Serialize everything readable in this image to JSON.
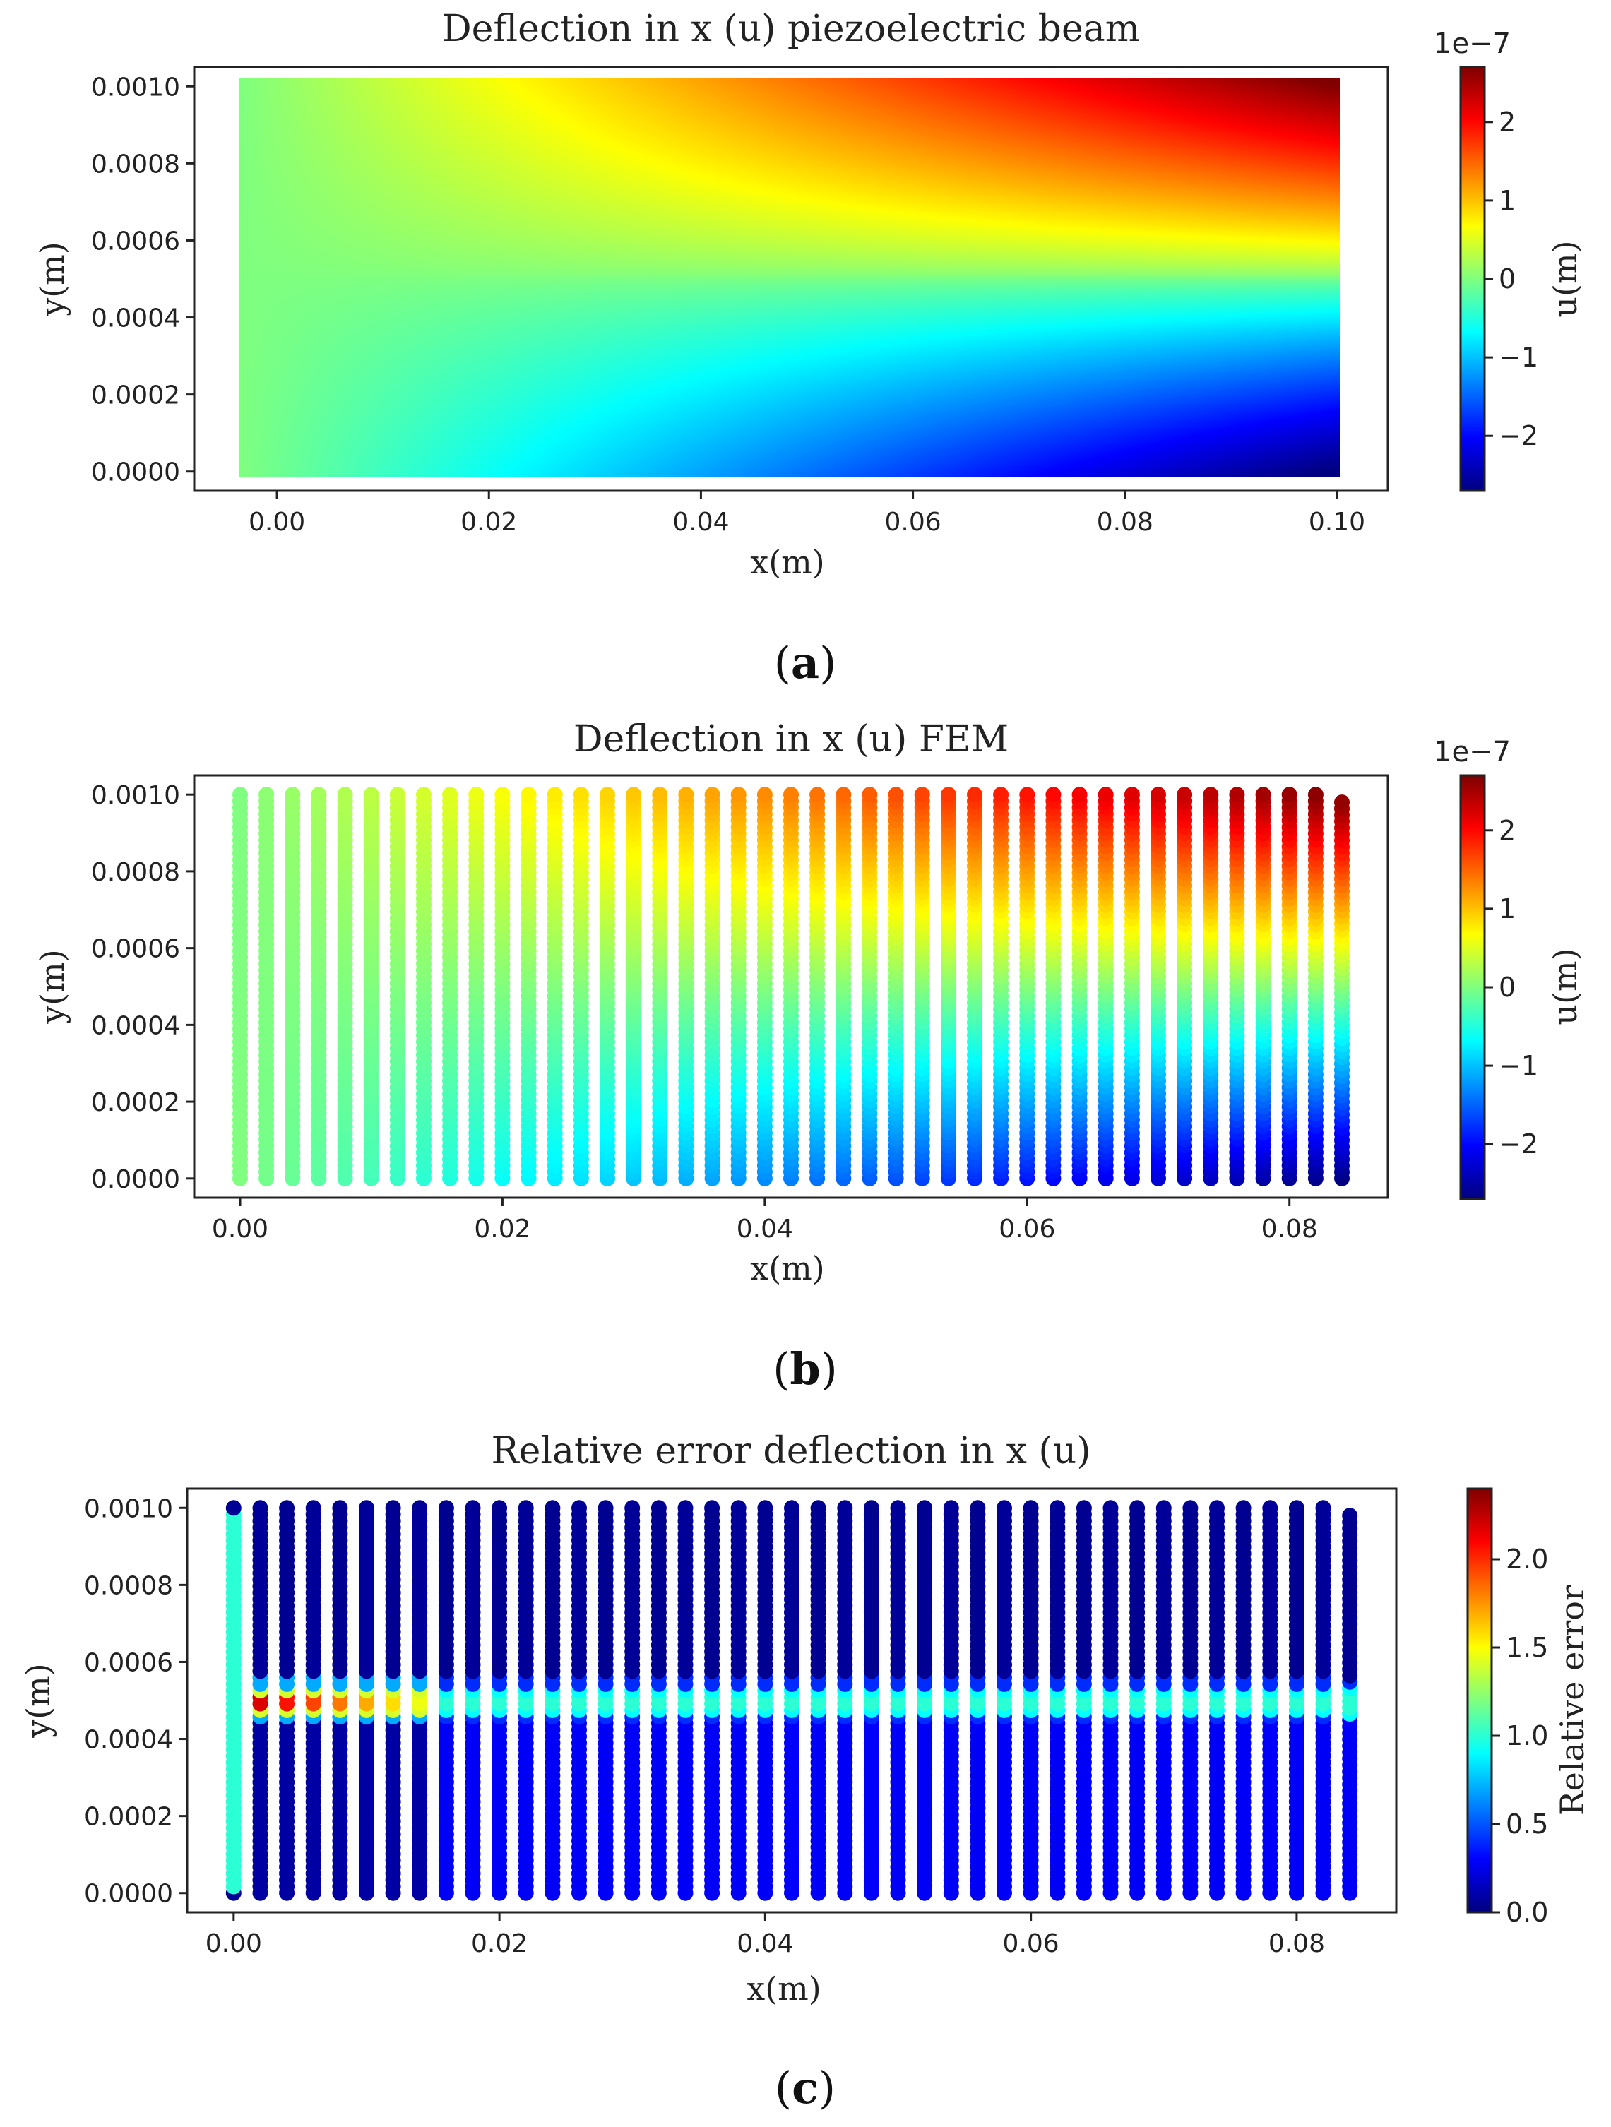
{
  "colors": {
    "frame": "#222222",
    "background": "#ffffff"
  },
  "chart_data": [
    {
      "id": "a",
      "type": "heatmap",
      "title": "Deflection in x (u) piezoelectric beam",
      "xlabel": "x(m)",
      "ylabel": "y(m)",
      "xlim": [
        0.0,
        0.1
      ],
      "ylim": [
        0.0,
        0.001
      ],
      "xticks": [
        "0.00",
        "0.02",
        "0.04",
        "0.06",
        "0.08",
        "0.10"
      ],
      "xtick_values": [
        0.0,
        0.02,
        0.04,
        0.06,
        0.08,
        0.1
      ],
      "yticks": [
        "0.0000",
        "0.0002",
        "0.0004",
        "0.0006",
        "0.0008",
        "0.0010"
      ],
      "ytick_values": [
        0.0,
        0.0002,
        0.0004,
        0.0006,
        0.0008,
        0.001
      ],
      "colorbar": {
        "label": "u(m)",
        "scale_text": "1e−7",
        "ticks": [
          "−2",
          "−1",
          "0",
          "1",
          "2"
        ],
        "tick_values": [
          -2,
          -1,
          0,
          1,
          2
        ],
        "range": [
          -2.7,
          2.7
        ],
        "colormap": "jet"
      },
      "field": "u = 2.7e-7 * (x/0.1) * (2*y/0.001 - 1), dense point cloud over x in [0,0.1], y in [0,0.001]",
      "grid": false,
      "panel_label": "a"
    },
    {
      "id": "b",
      "type": "scatter",
      "title": "Deflection in x (u) FEM",
      "xlabel": "x(m)",
      "ylabel": "y(m)",
      "xlim": [
        -0.0035,
        0.0875
      ],
      "ylim": [
        -5e-05,
        0.00105
      ],
      "xticks": [
        "0.00",
        "0.02",
        "0.04",
        "0.06",
        "0.08"
      ],
      "xtick_values": [
        0.0,
        0.02,
        0.04,
        0.06,
        0.08
      ],
      "yticks": [
        "0.0000",
        "0.0002",
        "0.0004",
        "0.0006",
        "0.0008",
        "0.0010"
      ],
      "ytick_values": [
        0.0,
        0.0002,
        0.0004,
        0.0006,
        0.0008,
        0.001
      ],
      "colorbar": {
        "label": "u(m)",
        "scale_text": "1e−7",
        "ticks": [
          "−2",
          "−1",
          "0",
          "1",
          "2"
        ],
        "tick_values": [
          -2,
          -1,
          0,
          1,
          2
        ],
        "range": [
          -2.7,
          2.7
        ],
        "colormap": "jet"
      },
      "columns": {
        "x_start": 0.0,
        "x_step": 0.002,
        "count": 43
      },
      "field": "u = 2.7e-7 * (x/0.084) * (2*y/0.001 - 1) sampled at FEM node columns",
      "grid": false,
      "panel_label": "b"
    },
    {
      "id": "c",
      "type": "scatter",
      "title": "Relative error deflection in x (u)",
      "xlabel": "x(m)",
      "ylabel": "y(m)",
      "xlim": [
        -0.0035,
        0.0875
      ],
      "ylim": [
        -5e-05,
        0.00105
      ],
      "xticks": [
        "0.00",
        "0.02",
        "0.04",
        "0.06",
        "0.08"
      ],
      "xtick_values": [
        0.0,
        0.02,
        0.04,
        0.06,
        0.08
      ],
      "yticks": [
        "0.0000",
        "0.0002",
        "0.0004",
        "0.0006",
        "0.0008",
        "0.0010"
      ],
      "ytick_values": [
        0.0,
        0.0002,
        0.0004,
        0.0006,
        0.0008,
        0.001
      ],
      "colorbar": {
        "label": "Relative error",
        "scale_text": "",
        "ticks": [
          "0.0",
          "0.5",
          "1.0",
          "1.5",
          "2.0"
        ],
        "tick_values": [
          0.0,
          0.5,
          1.0,
          1.5,
          2.0
        ],
        "range": [
          0.0,
          2.4
        ],
        "colormap": "jet"
      },
      "columns": {
        "x_start": 0.0,
        "x_step": 0.002,
        "count": 43
      },
      "notes_field": "error ~1.0 at x=0 column; ~0.05 above mid-height, ~0.2 below; peaks up to ~2.3 near y=0.0005 at small x",
      "grid": false,
      "panel_label": "c"
    }
  ]
}
